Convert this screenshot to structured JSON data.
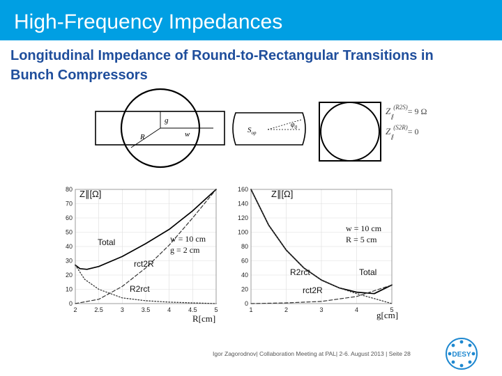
{
  "slide": {
    "title": "High-Frequency Impedances",
    "subtitle": "Longitudinal Impedance of Round-to-Rectangular Transitions in Bunch Compressors",
    "footer": "Igor Zagorodnov| Collaboration Meeting at PAL| 2-6. August 2013 | Seite 28",
    "logo_text": "DESY",
    "colors": {
      "title_bar": "#009fe3",
      "subtitle": "#1f4e9c",
      "logo": "#1e88d0"
    }
  },
  "geometry_labels": {
    "g": "g",
    "w": "w",
    "R": "R",
    "Sop": "S",
    "Sop_sub": "op",
    "phi": "φ",
    "phi_sub": "0",
    "z_r2s": "(R2S)",
    "z_r2s_value": "= 9 Ω",
    "z_s2r": "(S2R)",
    "z_s2r_value": "= 0"
  },
  "chart_data": [
    {
      "type": "line",
      "ylabel": "Z∥[Ω]",
      "xlabel": "R[cm]",
      "xlim": [
        2,
        5
      ],
      "ylim": [
        0,
        80
      ],
      "xticks": [
        "2",
        "2.5",
        "3",
        "3.5",
        "4",
        "4.5",
        "5"
      ],
      "yticks": [
        "0",
        "10",
        "20",
        "30",
        "40",
        "50",
        "60",
        "70",
        "80"
      ],
      "params": [
        "w = 10 cm",
        "g = 2 cm"
      ],
      "series": [
        {
          "name": "Total",
          "style": "solid",
          "x": [
            2.0,
            2.1,
            2.25,
            2.5,
            3.0,
            3.5,
            4.0,
            4.5,
            5.0
          ],
          "y": [
            27,
            24.5,
            24,
            26,
            33,
            42,
            52,
            65,
            80
          ]
        },
        {
          "name": "rct2R",
          "style": "dashed",
          "x": [
            2.0,
            2.5,
            3.0,
            3.5,
            4.0,
            4.5,
            5.0
          ],
          "y": [
            0,
            3,
            12,
            25,
            41,
            60,
            80
          ]
        },
        {
          "name": "R2rct",
          "style": "dotted",
          "x": [
            2.0,
            2.2,
            2.5,
            3.0,
            3.5,
            4.0,
            4.5,
            5.0
          ],
          "y": [
            27,
            17,
            10,
            4,
            2,
            1,
            0.5,
            0
          ]
        }
      ]
    },
    {
      "type": "line",
      "ylabel": "Z∥[Ω]",
      "xlabel": "g[cm]",
      "xlim": [
        1,
        5
      ],
      "ylim": [
        0,
        160
      ],
      "xticks": [
        "1",
        "2",
        "3",
        "4",
        "5"
      ],
      "yticks": [
        "0",
        "20",
        "40",
        "60",
        "80",
        "100",
        "120",
        "140",
        "160"
      ],
      "params": [
        "w = 10 cm",
        "R = 5 cm"
      ],
      "series": [
        {
          "name": "Total",
          "style": "solid",
          "x": [
            1.0,
            1.5,
            2.0,
            2.5,
            3.0,
            3.5,
            4.0,
            4.5,
            5.0
          ],
          "y": [
            160,
            110,
            75,
            50,
            33,
            22,
            16,
            14,
            26
          ]
        },
        {
          "name": "rct2R",
          "style": "dashed",
          "x": [
            1.0,
            2.0,
            3.0,
            4.0,
            4.5,
            5.0
          ],
          "y": [
            0,
            1,
            3,
            10,
            18,
            26
          ]
        },
        {
          "name": "R2rct",
          "style": "dotted",
          "x": [
            1.0,
            1.5,
            2.0,
            2.5,
            3.0,
            3.5,
            4.0,
            4.5,
            5.0
          ],
          "y": [
            160,
            110,
            75,
            50,
            33,
            22,
            14,
            7,
            0
          ]
        }
      ]
    }
  ]
}
